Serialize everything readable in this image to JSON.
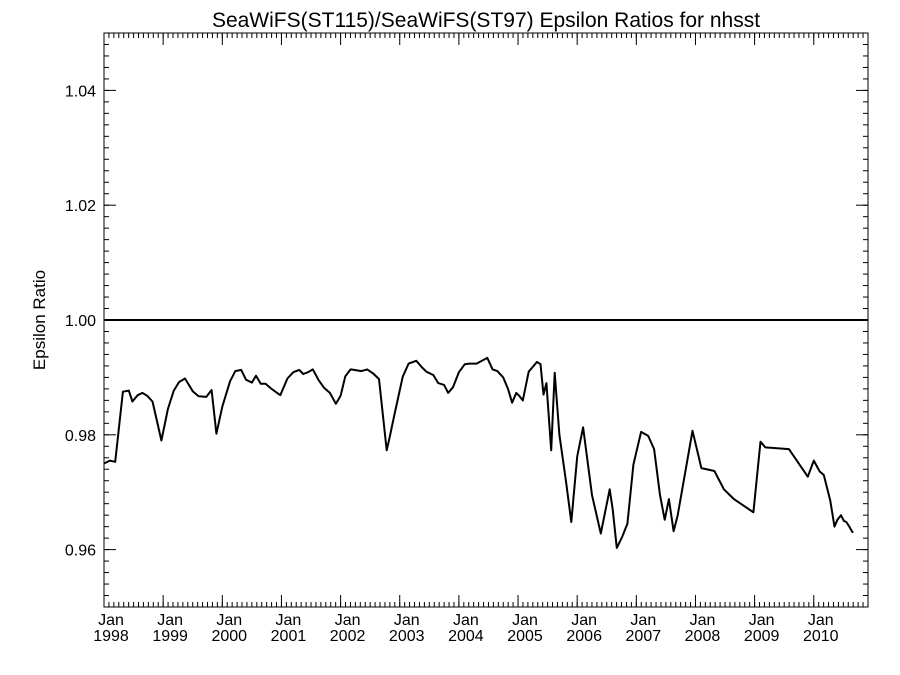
{
  "chart_data": {
    "type": "line",
    "title": "SeaWiFS(ST115)/SeaWiFS(ST97)  Epsilon Ratios for nhsst",
    "xlabel": "",
    "ylabel": "Epsilon Ratio",
    "xlim": [
      1998.0,
      2010.917
    ],
    "ylim": [
      0.95,
      1.05
    ],
    "y_ticks": [
      0.96,
      0.98,
      1.0,
      1.02,
      1.04
    ],
    "y_tick_labels": [
      "0.96",
      "0.98",
      "1.00",
      "1.02",
      "1.04"
    ],
    "x_ticks": [
      {
        "value": 1998,
        "month": "Jan",
        "year": "1998"
      },
      {
        "value": 1999,
        "month": "Jan",
        "year": "1999"
      },
      {
        "value": 2000,
        "month": "Jan",
        "year": "2000"
      },
      {
        "value": 2001,
        "month": "Jan",
        "year": "2001"
      },
      {
        "value": 2002,
        "month": "Jan",
        "year": "2002"
      },
      {
        "value": 2003,
        "month": "Jan",
        "year": "2003"
      },
      {
        "value": 2004,
        "month": "Jan",
        "year": "2004"
      },
      {
        "value": 2005,
        "month": "Jan",
        "year": "2005"
      },
      {
        "value": 2006,
        "month": "Jan",
        "year": "2006"
      },
      {
        "value": 2007,
        "month": "Jan",
        "year": "2007"
      },
      {
        "value": 2008,
        "month": "Jan",
        "year": "2008"
      },
      {
        "value": 2009,
        "month": "Jan",
        "year": "2009"
      },
      {
        "value": 2010,
        "month": "Jan",
        "year": "2010"
      }
    ],
    "reference_line": 1.0,
    "grid": false,
    "series": [
      {
        "x": [
          1998.0,
          1998.1,
          1998.19,
          1998.32,
          1998.42,
          1998.48,
          1998.57,
          1998.65,
          1998.73,
          1998.82,
          1998.97,
          1999.08,
          1999.18,
          1999.27,
          1999.37,
          1999.5,
          1999.6,
          1999.73,
          1999.82,
          1999.9,
          2000.0,
          2000.13,
          2000.22,
          2000.32,
          2000.4,
          2000.5,
          2000.57,
          2000.65,
          2000.73,
          2000.82,
          2000.98,
          2001.1,
          2001.2,
          2001.3,
          2001.37,
          2001.45,
          2001.53,
          2001.63,
          2001.72,
          2001.82,
          2001.92,
          2002.0,
          2002.08,
          2002.17,
          2002.23,
          2002.35,
          2002.45,
          2002.55,
          2002.65,
          2002.78,
          2002.83,
          2002.9,
          2003.05,
          2003.15,
          2003.28,
          2003.38,
          2003.45,
          2003.57,
          2003.65,
          2003.75,
          2003.82,
          2003.9,
          2004.0,
          2004.1,
          2004.18,
          2004.3,
          2004.48,
          2004.57,
          2004.65,
          2004.75,
          2004.83,
          2004.9,
          2004.97,
          2005.02,
          2005.08,
          2005.18,
          2005.32,
          2005.38,
          2005.43,
          2005.48,
          2005.56,
          2005.62,
          2005.7,
          2005.81,
          2005.9,
          2006.0,
          2006.1,
          2006.25,
          2006.4,
          2006.55,
          2006.6,
          2006.67,
          2006.76,
          2006.85,
          2006.95,
          2007.08,
          2007.2,
          2007.3,
          2007.4,
          2007.48,
          2007.55,
          2007.63,
          2007.7,
          2007.95,
          2008.1,
          2008.32,
          2008.48,
          2008.65,
          2008.98,
          2009.1,
          2009.18,
          2009.58,
          2009.9,
          2010.0,
          2010.1,
          2010.17,
          2010.28,
          2010.35,
          2010.4,
          2010.46,
          2010.51,
          2010.55,
          2010.6,
          2010.65,
          2010.67
        ],
        "y": [
          0.975,
          0.9755,
          0.9753,
          0.9875,
          0.9877,
          0.9858,
          0.9869,
          0.9873,
          0.9868,
          0.9858,
          0.979,
          0.9845,
          0.9877,
          0.9892,
          0.9898,
          0.9876,
          0.9867,
          0.9866,
          0.9878,
          0.9802,
          0.9849,
          0.9893,
          0.9911,
          0.9913,
          0.9896,
          0.9891,
          0.9903,
          0.9889,
          0.9889,
          0.9881,
          0.9869,
          0.9898,
          0.9909,
          0.9913,
          0.9906,
          0.9909,
          0.9914,
          0.9895,
          0.9882,
          0.9873,
          0.9854,
          0.9868,
          0.9902,
          0.9914,
          0.9913,
          0.9911,
          0.9914,
          0.9907,
          0.9897,
          0.9773,
          0.9796,
          0.983,
          0.9901,
          0.9924,
          0.9929,
          0.9917,
          0.991,
          0.9904,
          0.989,
          0.9887,
          0.9873,
          0.9883,
          0.9909,
          0.9923,
          0.9924,
          0.9924,
          0.9934,
          0.9914,
          0.9911,
          0.99,
          0.988,
          0.9856,
          0.9873,
          0.9868,
          0.986,
          0.991,
          0.9927,
          0.9923,
          0.987,
          0.989,
          0.9773,
          0.9908,
          0.98,
          0.972,
          0.9648,
          0.9762,
          0.9813,
          0.9695,
          0.9628,
          0.9705,
          0.967,
          0.9603,
          0.9622,
          0.9645,
          0.9748,
          0.9805,
          0.9798,
          0.9775,
          0.9695,
          0.9652,
          0.9688,
          0.9632,
          0.966,
          0.9807,
          0.9742,
          0.9737,
          0.9705,
          0.9688,
          0.9665,
          0.9788,
          0.9778,
          0.9775,
          0.9727,
          0.9755,
          0.9736,
          0.973,
          0.9685,
          0.964,
          0.9652,
          0.966,
          0.965,
          0.9648,
          0.964,
          0.9631,
          0.963
        ]
      }
    ]
  }
}
